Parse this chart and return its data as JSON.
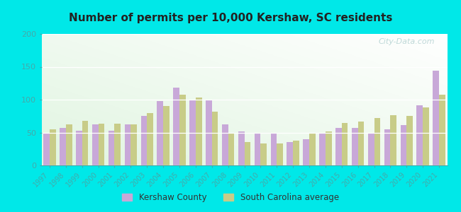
{
  "title": "Number of permits per 10,000 Kershaw, SC residents",
  "years": [
    1997,
    1998,
    1999,
    2000,
    2001,
    2002,
    2003,
    2004,
    2005,
    2006,
    2007,
    2008,
    2009,
    2010,
    2011,
    2012,
    2013,
    2014,
    2015,
    2016,
    2017,
    2018,
    2019,
    2020,
    2021
  ],
  "kershaw": [
    50,
    57,
    53,
    62,
    53,
    62,
    75,
    98,
    118,
    100,
    100,
    62,
    52,
    50,
    48,
    36,
    40,
    50,
    57,
    57,
    50,
    55,
    61,
    91,
    144
  ],
  "sc_avg": [
    55,
    62,
    68,
    63,
    63,
    62,
    80,
    90,
    108,
    103,
    82,
    50,
    36,
    33,
    33,
    38,
    50,
    52,
    65,
    67,
    72,
    76,
    75,
    88,
    107
  ],
  "kershaw_color": "#c8a8d8",
  "sc_avg_color": "#c8cc88",
  "ylim": [
    0,
    200
  ],
  "yticks": [
    0,
    50,
    100,
    150,
    200
  ],
  "outer_bg": "#00e8e8",
  "plot_bg_top": "#e0f0d8",
  "plot_bg_bottom": "#f0faf8",
  "watermark": "City-Data.com",
  "legend_kershaw": "Kershaw County",
  "legend_sc": "South Carolina average",
  "bar_width": 0.38,
  "tick_color": "#44aaaa",
  "title_fontsize": 11,
  "tick_fontsize": 7,
  "ytick_fontsize": 8
}
